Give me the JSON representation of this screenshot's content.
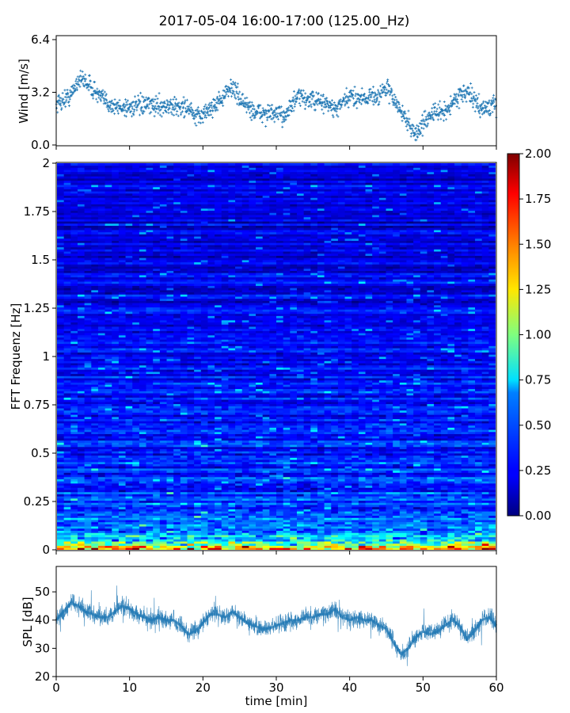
{
  "title": "2017-05-04 16:00-17:00 (125.00_Hz)",
  "colors": {
    "series": "#1f77b4",
    "axes": "#000000",
    "colormap": "jet"
  },
  "chart_data": [
    {
      "id": "wind",
      "type": "scatter",
      "ylabel": "Wind [m/s]",
      "xlabel": "",
      "xlim": [
        0,
        60
      ],
      "ylim": [
        0.0,
        6.4
      ],
      "yticks": [
        "0.0",
        "3.2",
        "6.4"
      ],
      "ytick_values": [
        0.0,
        3.2,
        6.4
      ],
      "xtick_values": [
        0,
        10,
        20,
        30,
        40,
        50,
        60
      ],
      "xticklabels_visible": false,
      "marker": "+",
      "series": [
        {
          "x": [
            0,
            2,
            3,
            4,
            6,
            8,
            10,
            12,
            14,
            16,
            18,
            19,
            21,
            23,
            24,
            25,
            27,
            29,
            31,
            33,
            35,
            37,
            38,
            40,
            42,
            44,
            45,
            46,
            47,
            48,
            49,
            51,
            53,
            55,
            56,
            58,
            60
          ],
          "y": [
            2.5,
            3.0,
            4.0,
            3.9,
            2.9,
            2.3,
            2.3,
            2.4,
            2.4,
            2.3,
            2.3,
            1.6,
            2.2,
            3.0,
            3.6,
            2.8,
            2.0,
            1.9,
            1.8,
            2.9,
            2.7,
            2.5,
            2.1,
            2.9,
            2.9,
            3.0,
            3.5,
            2.8,
            2.0,
            1.4,
            0.6,
            1.9,
            2.0,
            3.1,
            3.2,
            2.2,
            2.4
          ]
        }
      ]
    },
    {
      "id": "spectrogram",
      "type": "heatmap",
      "ylabel": "FFT Frequenz [Hz]",
      "xlabel": "",
      "xlim": [
        0,
        60
      ],
      "ylim": [
        0,
        2
      ],
      "yticks": [
        "0",
        "0.25",
        "0.5",
        "0.75",
        "1",
        "1.25",
        "1.5",
        "1.75",
        "2"
      ],
      "ytick_values": [
        0,
        0.25,
        0.5,
        0.75,
        1,
        1.25,
        1.5,
        1.75,
        2
      ],
      "xticklabels_visible": false,
      "colorbar": {
        "range": [
          0.0,
          2.0
        ],
        "ticks": [
          "0.00",
          "0.25",
          "0.50",
          "0.75",
          "1.00",
          "1.25",
          "1.50",
          "1.75",
          "2.00"
        ],
        "tick_values": [
          0.0,
          0.25,
          0.5,
          0.75,
          1.0,
          1.25,
          1.5,
          1.75,
          2.0
        ]
      },
      "intensity_profile": {
        "freq": [
          0.0,
          0.02,
          0.05,
          0.1,
          0.25,
          0.5,
          0.75,
          1.0,
          1.5,
          2.0
        ],
        "level": [
          1.7,
          1.1,
          0.75,
          0.5,
          0.36,
          0.3,
          0.28,
          0.24,
          0.2,
          0.18
        ]
      }
    },
    {
      "id": "spl",
      "type": "line",
      "ylabel": "SPL [dB]",
      "xlabel": "time [min]",
      "xlim": [
        0,
        60
      ],
      "ylim": [
        20,
        59
      ],
      "yticks": [
        "20",
        "30",
        "40",
        "50"
      ],
      "ytick_values": [
        20,
        30,
        40,
        50
      ],
      "xticks": [
        "0",
        "10",
        "20",
        "30",
        "40",
        "50",
        "60"
      ],
      "xtick_values": [
        0,
        10,
        20,
        30,
        40,
        50,
        60
      ],
      "series": [
        {
          "x": [
            0,
            1,
            2,
            3,
            4,
            5,
            6,
            7,
            8,
            9,
            10,
            11,
            12,
            13,
            14,
            15,
            16,
            17,
            18,
            19,
            20,
            21,
            22,
            23,
            24,
            25,
            26,
            27,
            28,
            29,
            30,
            31,
            32,
            33,
            34,
            35,
            36,
            37,
            38,
            39,
            40,
            41,
            42,
            43,
            44,
            45,
            46,
            47,
            48,
            49,
            50,
            51,
            52,
            53,
            54,
            55,
            56,
            57,
            58,
            59,
            60
          ],
          "y": [
            40,
            43,
            46,
            45,
            43,
            42,
            41,
            41,
            43,
            45,
            44,
            42,
            41,
            40,
            41,
            40,
            40,
            38,
            35,
            36,
            39,
            42,
            42,
            41,
            43,
            41,
            39,
            38,
            37,
            37,
            38,
            39,
            40,
            40,
            41,
            41,
            42,
            42,
            44,
            41,
            40,
            41,
            40,
            40,
            38,
            37,
            32,
            28,
            30,
            34,
            36,
            35,
            36,
            38,
            40,
            38,
            33,
            36,
            40,
            41,
            38
          ]
        }
      ]
    }
  ]
}
